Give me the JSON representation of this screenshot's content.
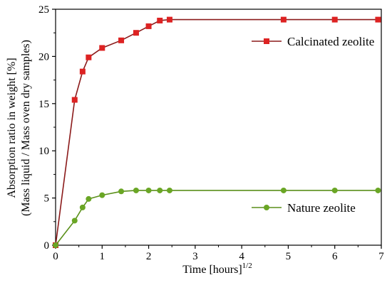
{
  "chart_data": {
    "type": "line",
    "title": "",
    "xlabel": "Time [hours]",
    "xlabel_superscript": "1/2",
    "ylabel_line1": "Absorption ratio in weight [%]",
    "ylabel_line2": "(Mass liquid / Mass oven dry samples)",
    "xlim": [
      0,
      7
    ],
    "ylim": [
      0,
      25
    ],
    "x_ticks": [
      "0",
      "1",
      "2",
      "3",
      "4",
      "5",
      "6",
      "7"
    ],
    "y_ticks": [
      "0",
      "5",
      "10",
      "15",
      "20",
      "25"
    ],
    "grid": false,
    "legend_placement": "right",
    "series": [
      {
        "name": "Calcinated zeolite",
        "line_color": "#8b1a1a",
        "marker_color": "#dd2222",
        "marker": "square",
        "x": [
          0,
          0.41,
          0.58,
          0.71,
          1.0,
          1.41,
          1.73,
          2.0,
          2.24,
          2.45,
          4.9,
          6.0,
          6.93
        ],
        "y": [
          0,
          15.4,
          18.4,
          19.9,
          20.9,
          21.7,
          22.5,
          23.2,
          23.8,
          23.9,
          23.9,
          23.9,
          23.9
        ]
      },
      {
        "name": "Nature zeolite",
        "line_color": "#5a8f1a",
        "marker_color": "#6aa625",
        "marker": "circle",
        "x": [
          0,
          0.41,
          0.58,
          0.71,
          1.0,
          1.41,
          1.73,
          2.0,
          2.24,
          2.45,
          4.9,
          6.0,
          6.93
        ],
        "y": [
          0,
          2.6,
          4.0,
          4.9,
          5.3,
          5.7,
          5.8,
          5.8,
          5.8,
          5.8,
          5.8,
          5.8,
          5.8
        ]
      }
    ]
  }
}
